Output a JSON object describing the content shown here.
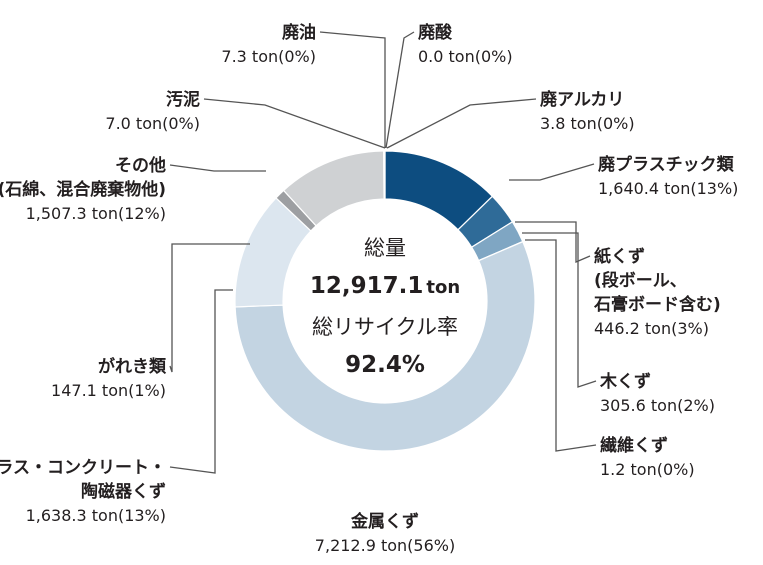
{
  "chart_data": {
    "type": "pie",
    "variant": "donut",
    "title": "",
    "center": {
      "total_label": "総量",
      "total_value": "12,917.1",
      "total_unit": "ton",
      "rate_label": "総リサイクル率",
      "rate_value": "92.4%"
    },
    "unit": "ton",
    "slices": [
      {
        "name": "廃プラスチック類",
        "lines": [
          "廃プラスチック類"
        ],
        "value": 1640.4,
        "value_text": "1,640.4 ton(13%)",
        "color": "#0d4d80"
      },
      {
        "name": "紙くず(段ボール、石膏ボード含む)",
        "lines": [
          "紙くず",
          "(段ボール、",
          "石膏ボード含む)"
        ],
        "value": 446.2,
        "value_text": "446.2 ton(3%)",
        "color": "#2f6b98"
      },
      {
        "name": "木くず",
        "lines": [
          "木くず"
        ],
        "value": 305.6,
        "value_text": "305.6 ton(2%)",
        "color": "#7fa6c3"
      },
      {
        "name": "繊維くず",
        "lines": [
          "繊維くず"
        ],
        "value": 1.2,
        "value_text": "1.2 ton(0%)",
        "color": "#5f87a8"
      },
      {
        "name": "金属くず",
        "lines": [
          "金属くず"
        ],
        "value": 7212.9,
        "value_text": "7,212.9 ton(56%)",
        "color": "#c3d4e2"
      },
      {
        "name": "ガラス・コンクリート・陶磁器くず",
        "lines": [
          "ガラス・コンクリート・",
          "陶磁器くず"
        ],
        "value": 1638.3,
        "value_text": "1,638.3 ton(13%)",
        "color": "#dce6ef"
      },
      {
        "name": "がれき類",
        "lines": [
          "がれき類"
        ],
        "value": 147.1,
        "value_text": "147.1 ton(1%)",
        "color": "#9d9fa2"
      },
      {
        "name": "その他(石綿、混合廃棄物他)",
        "lines": [
          "その他",
          "(石綿、混合廃棄物他)"
        ],
        "value": 1507.3,
        "value_text": "1,507.3 ton(12%)",
        "color": "#cfd1d3"
      },
      {
        "name": "汚泥",
        "lines": [
          "汚泥"
        ],
        "value": 7.0,
        "value_text": "7.0 ton(0%)",
        "color": "#b7b9bc"
      },
      {
        "name": "廃油",
        "lines": [
          "廃油"
        ],
        "value": 7.3,
        "value_text": "7.3 ton(0%)",
        "color": "#a9abae"
      },
      {
        "name": "廃酸",
        "lines": [
          "廃酸"
        ],
        "value": 0.0,
        "value_text": "0.0 ton(0%)",
        "color": "#0d4d80"
      },
      {
        "name": "廃アルカリ",
        "lines": [
          "廃アルカリ"
        ],
        "value": 3.8,
        "value_text": "3.8 ton(0%)",
        "color": "#0d4d80"
      }
    ]
  }
}
